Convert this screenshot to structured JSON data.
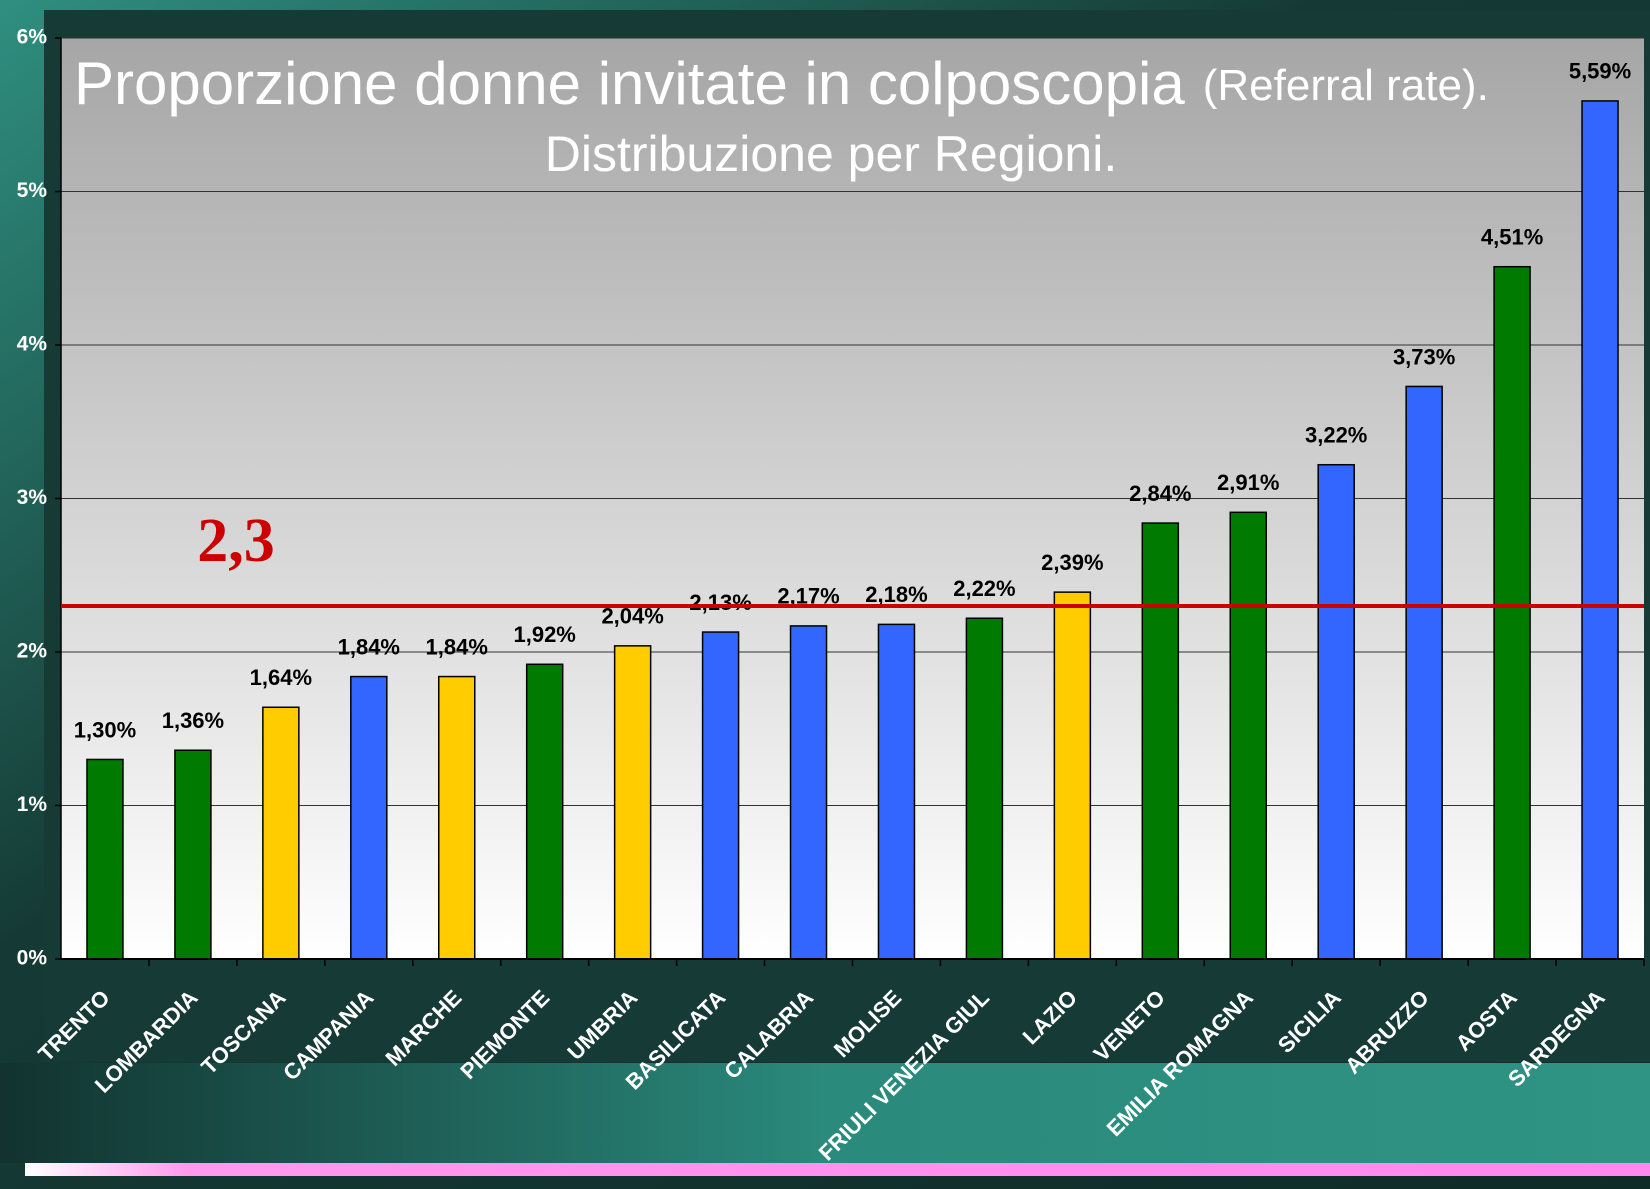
{
  "chart_data": {
    "type": "bar",
    "title": "Proporzione donne invitate in colposcopia",
    "title_suffix": "(Referral rate).",
    "subtitle": "Distribuzione per Regioni.",
    "categories": [
      "TRENTO",
      "LOMBARDIA",
      "TOSCANA",
      "CAMPANIA",
      "MARCHE",
      "PIEMONTE",
      "UMBRIA",
      "BASILICATA",
      "CALABRIA",
      "MOLISE",
      "FRIULI VENEZIA GIUL",
      "LAZIO",
      "VENETO",
      "EMILIA ROMAGNA",
      "SICILIA",
      "ABRUZZO",
      "AOSTA",
      "SARDEGNA"
    ],
    "values": [
      1.3,
      1.36,
      1.64,
      1.84,
      1.84,
      1.92,
      2.04,
      2.13,
      2.17,
      2.18,
      2.22,
      2.39,
      2.84,
      2.91,
      3.22,
      3.73,
      4.51,
      5.59
    ],
    "value_labels": [
      "1,30%",
      "1,36%",
      "1,64%",
      "1,84%",
      "1,84%",
      "1,92%",
      "2,04%",
      "2,13%",
      "2,17%",
      "2,18%",
      "2,22%",
      "2,39%",
      "2,84%",
      "2,91%",
      "3,22%",
      "3,73%",
      "4,51%",
      "5,59%"
    ],
    "colors": [
      "#007a00",
      "#007a00",
      "#ffcc00",
      "#3366ff",
      "#ffcc00",
      "#007a00",
      "#ffcc00",
      "#3366ff",
      "#3366ff",
      "#3366ff",
      "#007a00",
      "#ffcc00",
      "#007a00",
      "#007a00",
      "#3366ff",
      "#3366ff",
      "#007a00",
      "#3366ff"
    ],
    "ylim": [
      0,
      6
    ],
    "yticks": [
      {
        "value": 0,
        "label": "0%"
      },
      {
        "value": 1,
        "label": "1%"
      },
      {
        "value": 2,
        "label": "2%"
      },
      {
        "value": 3,
        "label": "3%"
      },
      {
        "value": 4,
        "label": "4%"
      },
      {
        "value": 5,
        "label": "5%"
      },
      {
        "value": 6,
        "label": "6%"
      }
    ],
    "grid": true,
    "reference_line": {
      "value": 2.3,
      "label": "2,3",
      "color": "#cc0000"
    }
  }
}
